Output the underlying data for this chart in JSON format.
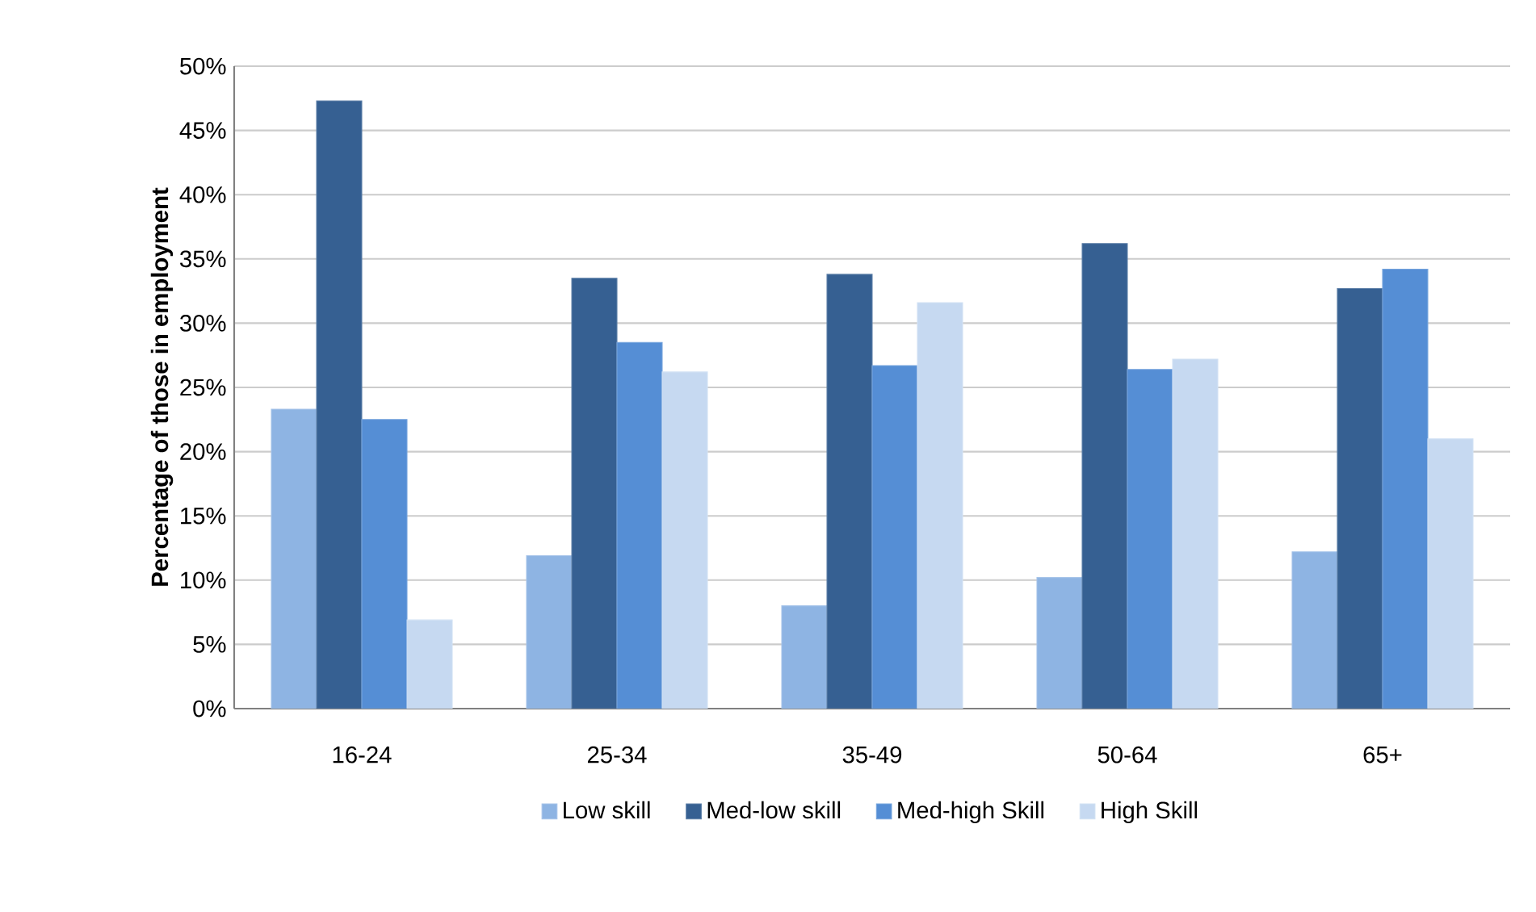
{
  "chart_data": {
    "type": "bar",
    "ylabel": "Percentage of those in employment",
    "categories": [
      "16-24",
      "25-34",
      "35-49",
      "50-64",
      "65+"
    ],
    "series": [
      {
        "name": "Low skill",
        "color": "#8eb4e3",
        "values": [
          23.3,
          11.9,
          8.0,
          10.2,
          12.2
        ]
      },
      {
        "name": "Med-low skill",
        "color": "#366092",
        "values": [
          47.3,
          33.5,
          33.8,
          36.2,
          32.7
        ]
      },
      {
        "name": "Med-high Skill",
        "color": "#558ed5",
        "values": [
          22.5,
          28.5,
          26.7,
          26.4,
          34.2
        ]
      },
      {
        "name": "High Skill",
        "color": "#c6d9f1",
        "values": [
          6.9,
          26.2,
          31.6,
          27.2,
          21.0
        ]
      }
    ],
    "ylim": [
      0,
      50
    ],
    "yticks": [
      {
        "value": 0,
        "label": "0%"
      },
      {
        "value": 5,
        "label": "5%"
      },
      {
        "value": 10,
        "label": "10%"
      },
      {
        "value": 15,
        "label": "15%"
      },
      {
        "value": 20,
        "label": "20%"
      },
      {
        "value": 25,
        "label": "25%"
      },
      {
        "value": 30,
        "label": "30%"
      },
      {
        "value": 35,
        "label": "35%"
      },
      {
        "value": 40,
        "label": "40%"
      },
      {
        "value": 45,
        "label": "45%"
      },
      {
        "value": 50,
        "label": "50%"
      }
    ],
    "grid": "y",
    "legend": "bottom"
  }
}
